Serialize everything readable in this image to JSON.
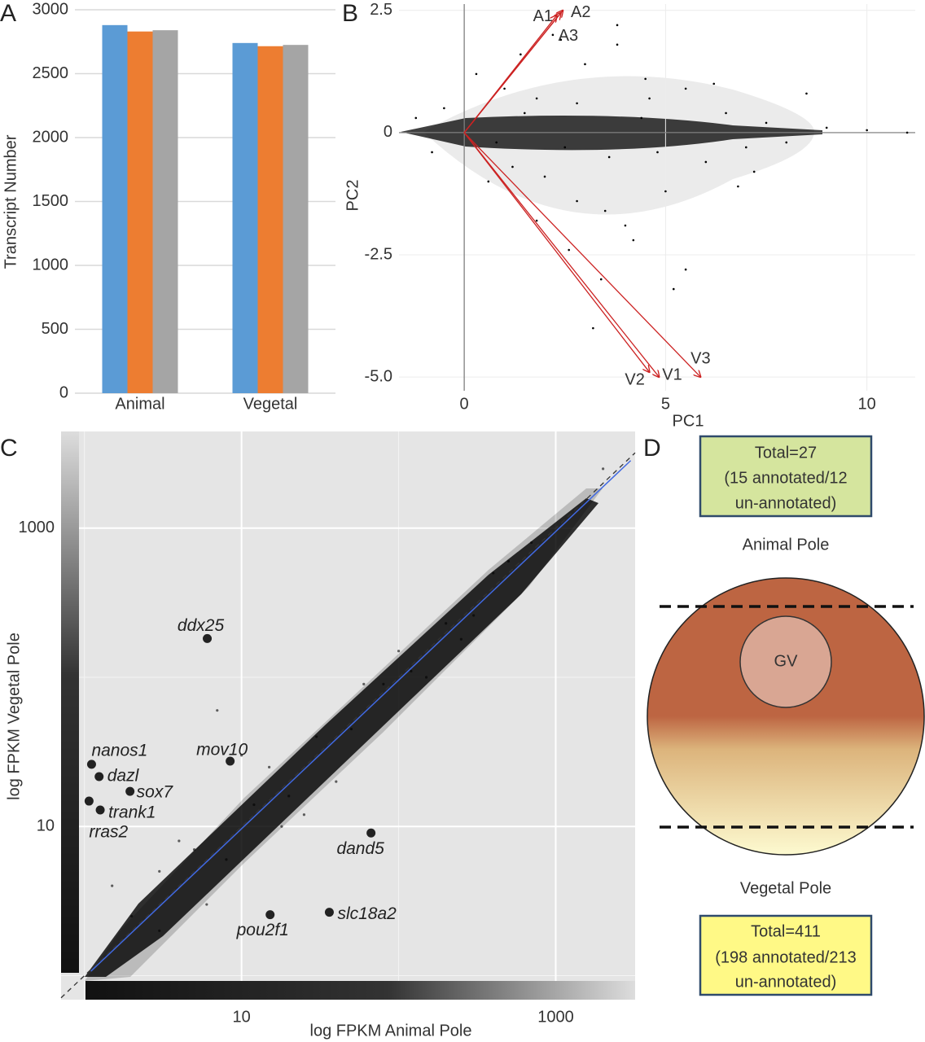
{
  "chart_data": [
    {
      "type": "bar",
      "panel": "A",
      "ylabel": "Transcript Number",
      "categories": [
        "Animal",
        "Vegetal"
      ],
      "series": [
        {
          "color": "#5b9bd5",
          "values": [
            2880,
            2740
          ]
        },
        {
          "color": "#ed7d31",
          "values": [
            2830,
            2715
          ]
        },
        {
          "color": "#a5a5a5",
          "values": [
            2840,
            2725
          ]
        }
      ],
      "ylim": [
        0,
        3000
      ],
      "yticks": [
        0,
        500,
        1000,
        1500,
        2000,
        2500,
        3000
      ],
      "grid": true
    },
    {
      "type": "biplot",
      "panel": "B",
      "xlabel": "PC1",
      "ylabel": "PC2",
      "xlim": [
        -1.62,
        11.2
      ],
      "ylim": [
        -5.28,
        2.63
      ],
      "xticks": [
        0,
        5,
        10
      ],
      "yticks": [
        {
          "value": -5,
          "label": "-5.0"
        },
        -2.5,
        0,
        2.5
      ],
      "grid": true,
      "point_color": "#000000",
      "arrow_color": "#cc2222",
      "points": {
        "x": [
          -1.2,
          -0.8,
          -0.5,
          0.3,
          0.6,
          1.0,
          1.4,
          1.8,
          2.2,
          2.6,
          3.0,
          3.4,
          3.8,
          4.2,
          4.6,
          5.0,
          5.5,
          6.0,
          6.5,
          7.0,
          7.5,
          8.0,
          9.0,
          10.0,
          11.0,
          1.2,
          2.0,
          2.8,
          3.6,
          4.4,
          5.2,
          6.2,
          7.2,
          1.5,
          2.5,
          3.5,
          4.5,
          5.5,
          0.8,
          1.8,
          2.8,
          3.8,
          4.8,
          3.2,
          4.0,
          2.4,
          6.8,
          8.5
        ],
        "y": [
          0.3,
          -0.4,
          0.5,
          1.2,
          -1.0,
          0.9,
          1.6,
          -1.8,
          2.0,
          -2.4,
          1.4,
          -3.0,
          1.8,
          -2.2,
          0.7,
          -1.2,
          0.9,
          -0.6,
          0.4,
          -0.3,
          0.2,
          -0.2,
          0.1,
          0.05,
          0.0,
          -0.7,
          -0.9,
          0.6,
          -0.5,
          0.3,
          -3.2,
          1.0,
          -0.8,
          0.4,
          -0.3,
          -1.6,
          1.1,
          -2.8,
          -0.2,
          0.7,
          -1.4,
          2.2,
          -0.4,
          -4.0,
          -1.9,
          1.9,
          -1.1,
          0.8
        ]
      },
      "vectors": [
        {
          "name": "A1",
          "x": 2.4,
          "y": 2.45
        },
        {
          "name": "A2",
          "x": 2.45,
          "y": 2.5
        },
        {
          "name": "A3",
          "x": 2.3,
          "y": 2.4
        },
        {
          "name": "V1",
          "x": 4.84,
          "y": -5.0
        },
        {
          "name": "V2",
          "x": 4.6,
          "y": -4.9
        },
        {
          "name": "V3",
          "x": 5.87,
          "y": -5.0
        }
      ]
    },
    {
      "type": "scatter",
      "panel": "C",
      "xlabel": "log FPKM Animal Pole",
      "ylabel": "log FPKM Vegetal Pole",
      "log_scale": true,
      "xlim": [
        0.71,
        3200
      ],
      "ylim": [
        0.69,
        4450
      ],
      "xticks": [
        10,
        1000
      ],
      "yticks": [
        10,
        1000
      ],
      "minor_grid": [
        1,
        100
      ],
      "grid": true,
      "point_color": "#000000",
      "fit_color": "#4169e1",
      "fit": {
        "x": [
          1.1,
          3000
        ],
        "y": [
          1.07,
          2840
        ]
      },
      "points": {
        "x": [
          2,
          3,
          5,
          8,
          12,
          20,
          30,
          50,
          80,
          120,
          200,
          300,
          500,
          3,
          6,
          15,
          40,
          100,
          250,
          4,
          10,
          25,
          60,
          150,
          400,
          700,
          2000,
          1.5,
          7,
          18
        ],
        "y": [
          2.5,
          2,
          7,
          6,
          14,
          16,
          40,
          45,
          90,
          110,
          230,
          260,
          600,
          5,
          3,
          25,
          20,
          150,
          180,
          8,
          30,
          12,
          90,
          100,
          500,
          800,
          2500,
          4,
          60,
          10
        ]
      },
      "genes": {
        "names": [
          "ddx25",
          "mov10",
          "nanos1",
          "dazl",
          "sox7",
          "trank1",
          "rras2",
          "dand5",
          "slc18a2",
          "pou2f1"
        ],
        "x": [
          6.05,
          8.46,
          1.11,
          1.24,
          1.95,
          1.26,
          1.07,
          66.7,
          36.2,
          15.2
        ],
        "y": [
          182,
          27.4,
          26.1,
          21.6,
          17.2,
          12.9,
          14.8,
          9.04,
          2.66,
          2.56
        ]
      }
    }
  ],
  "diagram": {
    "panel": "D",
    "top_box": {
      "lines": [
        "Total=27",
        "(15 annotated/12",
        "un-annotated)"
      ]
    },
    "animal_label": "Animal Pole",
    "nucleus": "GV",
    "vegetal_label": "Vegetal Pole",
    "bottom_box": {
      "lines": [
        "Total=411",
        "(198 annotated/213",
        "un-annotated)"
      ]
    }
  }
}
